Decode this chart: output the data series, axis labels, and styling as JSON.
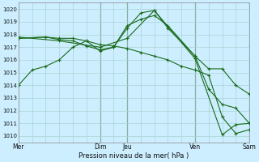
{
  "bg_color": "#cceeff",
  "grid_color": "#aad4d4",
  "line_color": "#1a6b1a",
  "vline_color": "#336633",
  "ylabel_min": 1010,
  "ylabel_max": 1020,
  "xlabel": "Pression niveau de la mer( hPa )",
  "xtick_labels_pos": [
    0,
    6,
    8,
    13,
    17
  ],
  "xtick_labels": [
    "Mer",
    "Dim",
    "Jeu",
    "Ven",
    "Sam"
  ],
  "xmin": 0,
  "xmax": 17,
  "vlines": [
    6,
    8,
    13,
    17
  ],
  "series": [
    {
      "x": [
        0,
        1,
        2,
        3,
        4,
        5,
        6,
        7,
        8,
        9,
        10,
        11,
        13,
        14,
        15,
        16,
        17
      ],
      "y": [
        1014.0,
        1015.2,
        1015.5,
        1016.0,
        1017.0,
        1017.5,
        1016.7,
        1017.0,
        1018.5,
        1019.7,
        1019.9,
        1018.5,
        1016.3,
        1015.3,
        1015.3,
        1014.0,
        1013.3
      ]
    },
    {
      "x": [
        0,
        2,
        3,
        4,
        5,
        6,
        7,
        8,
        9,
        10,
        11,
        13,
        14,
        15,
        16,
        17
      ],
      "y": [
        1017.7,
        1017.8,
        1017.6,
        1017.5,
        1017.1,
        1016.8,
        1017.0,
        1018.7,
        1019.2,
        1019.5,
        1018.7,
        1016.3,
        1013.7,
        1012.5,
        1012.2,
        1011.0
      ]
    },
    {
      "x": [
        0,
        2,
        3,
        4,
        5,
        6,
        7,
        8,
        9,
        10,
        11,
        12,
        13,
        14,
        15,
        16,
        17
      ],
      "y": [
        1017.7,
        1017.8,
        1017.7,
        1017.7,
        1017.5,
        1017.2,
        1017.1,
        1016.9,
        1016.6,
        1016.3,
        1016.0,
        1015.5,
        1015.2,
        1014.8,
        1011.5,
        1010.2,
        1010.5
      ]
    },
    {
      "x": [
        0,
        3,
        6,
        8,
        10,
        13,
        15,
        16,
        17
      ],
      "y": [
        1017.8,
        1017.5,
        1017.0,
        1017.7,
        1019.9,
        1016.1,
        1010.1,
        1010.9,
        1011.0
      ]
    }
  ]
}
